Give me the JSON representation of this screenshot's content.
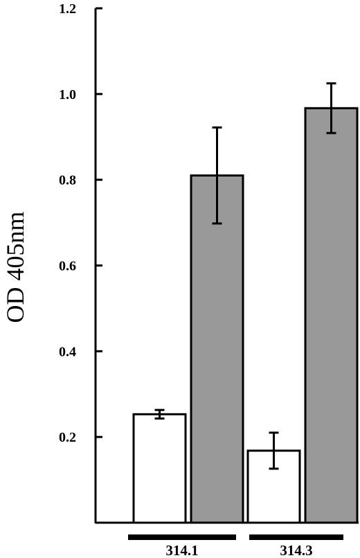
{
  "chart_data": {
    "type": "bar",
    "ylabel": "OD 405nm",
    "ylim": [
      0,
      1.2
    ],
    "yticks": [
      "0.2",
      "0.4",
      "0.6",
      "0.8",
      "1.0",
      "1.2"
    ],
    "groups": [
      "314.1",
      "314.3"
    ],
    "series": [
      {
        "values": [
          0.253,
          0.168
        ],
        "errors": [
          0.01,
          0.042
        ],
        "color": "#ffffff"
      },
      {
        "values": [
          0.81,
          0.967
        ],
        "errors": [
          0.112,
          0.058
        ],
        "color": "#999999"
      }
    ],
    "grid": false,
    "legend": "none"
  }
}
